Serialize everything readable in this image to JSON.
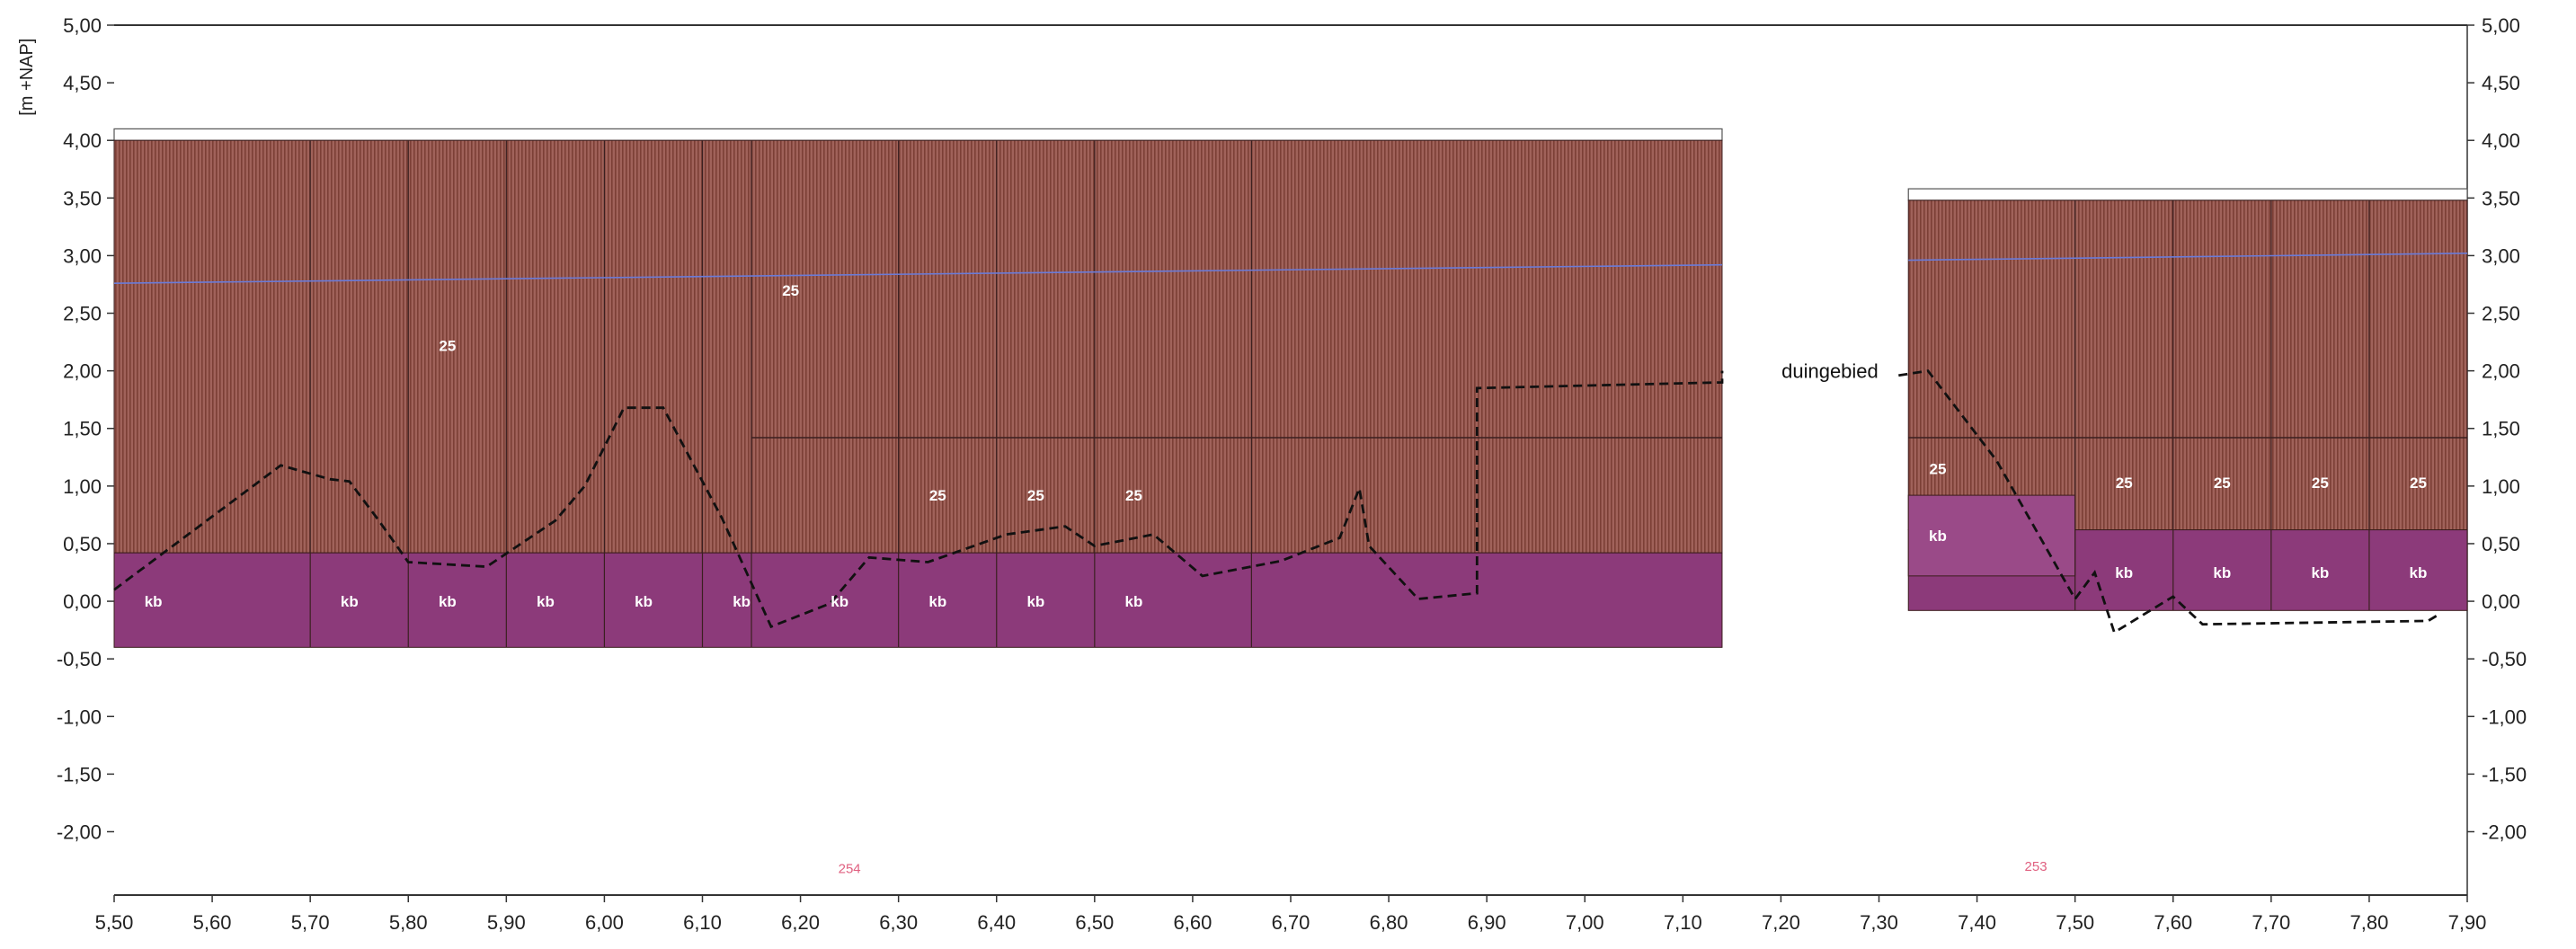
{
  "chart_data": {
    "type": "area",
    "ylabel": "[m +NAP]",
    "xlim": [
      5.5,
      7.9
    ],
    "ylim": [
      -2.55,
      5.0
    ],
    "x_ticks": [
      "5,50",
      "5,60",
      "5,70",
      "5,80",
      "5,90",
      "6,00",
      "6,10",
      "6,20",
      "6,30",
      "6,40",
      "6,50",
      "6,60",
      "6,70",
      "6,80",
      "6,90",
      "7,00",
      "7,10",
      "7,20",
      "7,30",
      "7,40",
      "7,50",
      "7,60",
      "7,70",
      "7,80",
      "7,90"
    ],
    "y_ticks": [
      "5,00",
      "4,50",
      "4,00",
      "3,50",
      "3,00",
      "2,50",
      "2,00",
      "1,50",
      "1,00",
      "0,50",
      "0,00",
      "-0,50",
      "-1,00",
      "-1,50",
      "-2,00"
    ],
    "y_tick_values": [
      5.0,
      4.5,
      4.0,
      3.5,
      3.0,
      2.5,
      2.0,
      1.5,
      1.0,
      0.5,
      0.0,
      -0.5,
      -1.0,
      -1.5,
      -2.0
    ],
    "colors": {
      "layer_25": "#9b5b4f",
      "layer_25_stripe": "#7f4036",
      "layer_kb": "#8c3a7a",
      "layer_kb_light": "#9a4a88",
      "water_line": "#6a7bd8",
      "ground_line": "#111111",
      "grid_line": "#3a2020"
    },
    "blocks": [
      {
        "x0": 5.5,
        "x1": 7.14,
        "top": 4.0,
        "cap": 4.1,
        "layers": [
          {
            "code": "25",
            "from": 0.42,
            "to": 4.0
          },
          {
            "code": "kb",
            "from": -0.4,
            "to": 0.42
          }
        ]
      },
      {
        "x0": 7.33,
        "x1": 7.9,
        "top": 3.48,
        "cap": 3.58,
        "layers": [
          {
            "code": "25",
            "from": 0.62,
            "to": 3.48
          },
          {
            "code": "kb",
            "from": -0.08,
            "to": 0.62
          }
        ]
      }
    ],
    "kb_step": {
      "x0": 7.33,
      "x1": 7.5,
      "from": 0.22,
      "to": 0.92
    },
    "sub_top_25_left": {
      "x0": 6.15,
      "x1": 7.14,
      "at": 1.42
    },
    "sub_top_25_right": {
      "x0": 7.33,
      "x1": 7.9,
      "at": 1.42
    },
    "column_dividers_left": [
      5.7,
      5.8,
      5.9,
      6.0,
      6.1,
      6.15,
      6.3,
      6.4,
      6.5,
      6.66
    ],
    "column_dividers_right": [
      7.5,
      7.6,
      7.7,
      7.8
    ],
    "cell_labels": [
      {
        "text": "25",
        "x": 5.84,
        "y": 2.22
      },
      {
        "text": "25",
        "x": 6.19,
        "y": 2.7
      },
      {
        "text": "25",
        "x": 6.34,
        "y": 0.92
      },
      {
        "text": "25",
        "x": 6.44,
        "y": 0.92
      },
      {
        "text": "25",
        "x": 6.54,
        "y": 0.92
      },
      {
        "text": "25",
        "x": 7.36,
        "y": 1.15
      },
      {
        "text": "25",
        "x": 7.55,
        "y": 1.03
      },
      {
        "text": "25",
        "x": 7.65,
        "y": 1.03
      },
      {
        "text": "25",
        "x": 7.75,
        "y": 1.03
      },
      {
        "text": "25",
        "x": 7.85,
        "y": 1.03
      },
      {
        "text": "kb",
        "x": 5.54,
        "y": 0.0
      },
      {
        "text": "kb",
        "x": 5.74,
        "y": 0.0
      },
      {
        "text": "kb",
        "x": 5.84,
        "y": 0.0
      },
      {
        "text": "kb",
        "x": 5.94,
        "y": 0.0
      },
      {
        "text": "kb",
        "x": 6.04,
        "y": 0.0
      },
      {
        "text": "kb",
        "x": 6.14,
        "y": 0.0
      },
      {
        "text": "kb",
        "x": 6.24,
        "y": 0.0
      },
      {
        "text": "kb",
        "x": 6.34,
        "y": 0.0
      },
      {
        "text": "kb",
        "x": 6.44,
        "y": 0.0
      },
      {
        "text": "kb",
        "x": 6.54,
        "y": 0.0
      },
      {
        "text": "kb",
        "x": 7.36,
        "y": 0.57
      },
      {
        "text": "kb",
        "x": 7.55,
        "y": 0.25
      },
      {
        "text": "kb",
        "x": 7.65,
        "y": 0.25
      },
      {
        "text": "kb",
        "x": 7.75,
        "y": 0.25
      },
      {
        "text": "kb",
        "x": 7.85,
        "y": 0.25
      }
    ],
    "water_level": [
      {
        "x": 5.5,
        "y": 2.76
      },
      {
        "x": 7.14,
        "y": 2.92
      },
      {
        "x": 7.33,
        "y": 2.96
      },
      {
        "x": 7.9,
        "y": 3.02
      }
    ],
    "ground_profile_left": [
      {
        "x": 5.5,
        "y": 0.1
      },
      {
        "x": 5.67,
        "y": 1.18
      },
      {
        "x": 5.72,
        "y": 1.06
      },
      {
        "x": 5.74,
        "y": 1.04
      },
      {
        "x": 5.77,
        "y": 0.7
      },
      {
        "x": 5.8,
        "y": 0.34
      },
      {
        "x": 5.88,
        "y": 0.3
      },
      {
        "x": 5.95,
        "y": 0.7
      },
      {
        "x": 5.98,
        "y": 1.0
      },
      {
        "x": 6.02,
        "y": 1.68
      },
      {
        "x": 6.06,
        "y": 1.68
      },
      {
        "x": 6.12,
        "y": 0.72
      },
      {
        "x": 6.17,
        "y": -0.22
      },
      {
        "x": 6.23,
        "y": -0.02
      },
      {
        "x": 6.27,
        "y": 0.38
      },
      {
        "x": 6.33,
        "y": 0.34
      },
      {
        "x": 6.41,
        "y": 0.58
      },
      {
        "x": 6.47,
        "y": 0.65
      },
      {
        "x": 6.5,
        "y": 0.48
      },
      {
        "x": 6.56,
        "y": 0.58
      },
      {
        "x": 6.61,
        "y": 0.22
      },
      {
        "x": 6.69,
        "y": 0.35
      },
      {
        "x": 6.75,
        "y": 0.55
      },
      {
        "x": 6.77,
        "y": 0.98
      },
      {
        "x": 6.78,
        "y": 0.48
      },
      {
        "x": 6.83,
        "y": 0.02
      },
      {
        "x": 6.89,
        "y": 0.07
      },
      {
        "x": 6.89,
        "y": 1.85
      },
      {
        "x": 7.14,
        "y": 1.9
      },
      {
        "x": 7.14,
        "y": 2.0
      }
    ],
    "ground_profile_right": [
      {
        "x": 7.32,
        "y": 1.96
      },
      {
        "x": 7.35,
        "y": 2.0
      },
      {
        "x": 7.42,
        "y": 1.22
      },
      {
        "x": 7.5,
        "y": 0.02
      },
      {
        "x": 7.52,
        "y": 0.25
      },
      {
        "x": 7.54,
        "y": -0.27
      },
      {
        "x": 7.6,
        "y": 0.04
      },
      {
        "x": 7.63,
        "y": -0.2
      },
      {
        "x": 7.86,
        "y": -0.17
      },
      {
        "x": 7.87,
        "y": -0.12
      }
    ],
    "annotations": [
      {
        "text": "duingebied",
        "x": 7.25,
        "y": 2.0
      }
    ],
    "small_labels": [
      {
        "text": "254",
        "x": 6.25,
        "y": -2.32
      },
      {
        "text": "253",
        "x": 7.46,
        "y": -2.3
      }
    ]
  }
}
